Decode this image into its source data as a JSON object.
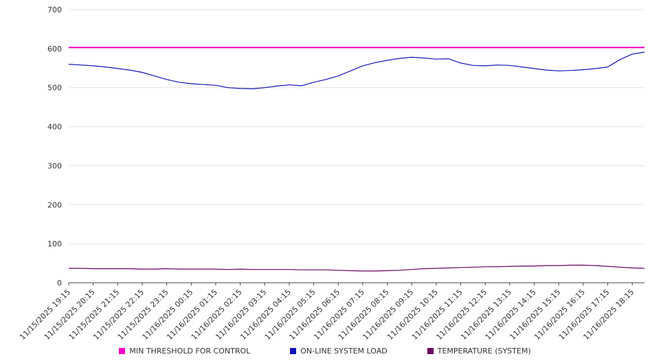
{
  "colors": {
    "grid": "#e3e3e3",
    "axis": "#444444",
    "tick_text": "#333333",
    "threshold": "#ff00cc",
    "load": "#1414b8",
    "temperature": "#6b0060"
  },
  "chart_data": {
    "type": "line",
    "title": "",
    "xlabel": "",
    "ylabel": "",
    "ylim": [
      0,
      700
    ],
    "y_ticks": [
      0,
      100,
      200,
      300,
      400,
      500,
      600,
      700
    ],
    "grid": true,
    "legend_position": "bottom",
    "categories": [
      "11/15/2025 19:15",
      "11/15/2025 20:15",
      "11/15/2025 21:15",
      "11/15/2025 22:15",
      "11/15/2025 23:15",
      "11/16/2025 00:15",
      "11/16/2025 01:15",
      "11/16/2025 02:15",
      "11/16/2025 03:15",
      "11/16/2025 04:15",
      "11/16/2025 05:15",
      "11/16/2025 06:15",
      "11/16/2025 07:15",
      "11/16/2025 08:15",
      "11/16/2025 09:15",
      "11/16/2025 10:15",
      "11/16/2025 11:15",
      "11/16/2025 12:15",
      "11/16/2025 13:15",
      "11/16/2025 14:15",
      "11/16/2025 15:15",
      "11/16/2025 16:15",
      "11/16/2025 17:15",
      "11/16/2025 18:15"
    ],
    "series": [
      {
        "name": "MIN THRESHOLD FOR CONTROL",
        "color": "#ff00cc",
        "constant": 603,
        "stroke_width": 2
      },
      {
        "name": "ON-LINE SYSTEM LOAD",
        "color": "#1414b8",
        "stroke_width": 1.2,
        "values": [
          560,
          558,
          556,
          553,
          549,
          545,
          539,
          530,
          521,
          514,
          510,
          508,
          506,
          500,
          498,
          497,
          500,
          504,
          507,
          505,
          514,
          521,
          530,
          543,
          556,
          564,
          570,
          575,
          578,
          576,
          573,
          574,
          563,
          557,
          556,
          558,
          557,
          553,
          549,
          545,
          543,
          544,
          546,
          549,
          553,
          572,
          586,
          591
        ]
      },
      {
        "name": "TEMPERATURE (SYSTEM)",
        "color": "#6b0060",
        "stroke_width": 1.2,
        "values": [
          37,
          37,
          36,
          36,
          36,
          36,
          35,
          35,
          36,
          35,
          35,
          35,
          35,
          34,
          35,
          34,
          34,
          34,
          34,
          33,
          33,
          33,
          32,
          31,
          30,
          30,
          31,
          32,
          34,
          36,
          37,
          38,
          39,
          40,
          41,
          41,
          42,
          43,
          43,
          44,
          44,
          45,
          45,
          44,
          42,
          40,
          38,
          37
        ]
      }
    ]
  }
}
